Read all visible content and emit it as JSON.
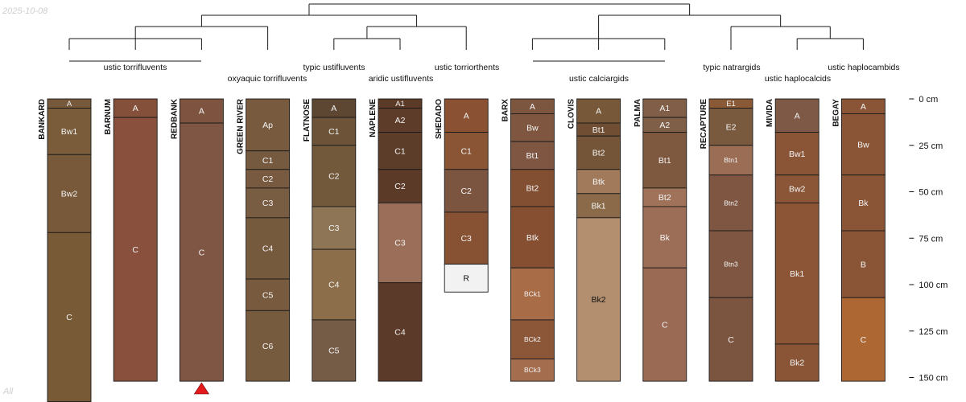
{
  "page": {
    "date": "2025-10-08",
    "footer": "All"
  },
  "depth_axis": {
    "unit": "cm",
    "max_depth": 152,
    "ticks": [
      {
        "depth": 0,
        "label": "0 cm"
      },
      {
        "depth": 25,
        "label": "25 cm"
      },
      {
        "depth": 50,
        "label": "50 cm"
      },
      {
        "depth": 75,
        "label": "75 cm"
      },
      {
        "depth": 100,
        "label": "100 cm"
      },
      {
        "depth": 125,
        "label": "125 cm"
      },
      {
        "depth": 150,
        "label": "150 cm"
      }
    ]
  },
  "taxa": [
    {
      "label": "ustic torrifluvents"
    },
    {
      "label": "oxyaquic torrifluvents"
    },
    {
      "label": "typic ustifluvents"
    },
    {
      "label": "aridic ustifluvents"
    },
    {
      "label": "ustic torriorthents"
    },
    {
      "label": "ustic calciargids"
    },
    {
      "label": "typic natrargids"
    },
    {
      "label": "ustic haplocalcids"
    },
    {
      "label": "ustic haplocambids"
    }
  ],
  "profiles": [
    {
      "name": "BANKARD",
      "horizons": [
        {
          "name": "A",
          "top": 0,
          "bottom": 5,
          "color": "#76593A"
        },
        {
          "name": "Bw1",
          "top": 5,
          "bottom": 30,
          "color": "#7A5C3B"
        },
        {
          "name": "Bw2",
          "top": 30,
          "bottom": 72,
          "color": "#78593A"
        },
        {
          "name": "C",
          "top": 72,
          "bottom": 163,
          "color": "#785A37"
        }
      ]
    },
    {
      "name": "BARNUM",
      "horizons": [
        {
          "name": "A",
          "top": 0,
          "bottom": 10,
          "color": "#85503A"
        },
        {
          "name": "C",
          "top": 10,
          "bottom": 152,
          "color": "#88503D"
        }
      ]
    },
    {
      "name": "REDBANK",
      "horizons": [
        {
          "name": "A",
          "top": 0,
          "bottom": 13,
          "color": "#7E5440"
        },
        {
          "name": "C",
          "top": 13,
          "bottom": 152,
          "color": "#7F5543"
        }
      ]
    },
    {
      "name": "GREEN RIVER",
      "horizons": [
        {
          "name": "Ap",
          "top": 0,
          "bottom": 28,
          "color": "#785A3F"
        },
        {
          "name": "C1",
          "top": 28,
          "bottom": 38,
          "color": "#765A40"
        },
        {
          "name": "C2",
          "top": 38,
          "bottom": 48,
          "color": "#785A40"
        },
        {
          "name": "C3",
          "top": 48,
          "bottom": 64,
          "color": "#795D42"
        },
        {
          "name": "C4",
          "top": 64,
          "bottom": 97,
          "color": "#765A3E"
        },
        {
          "name": "C5",
          "top": 97,
          "bottom": 114,
          "color": "#785B3E"
        },
        {
          "name": "C6",
          "top": 114,
          "bottom": 152,
          "color": "#775B3F"
        }
      ]
    },
    {
      "name": "FLATNOSE",
      "horizons": [
        {
          "name": "A",
          "top": 0,
          "bottom": 10,
          "color": "#5E4732"
        },
        {
          "name": "C1",
          "top": 10,
          "bottom": 25,
          "color": "#6D5439"
        },
        {
          "name": "C2",
          "top": 25,
          "bottom": 58,
          "color": "#73593C"
        },
        {
          "name": "C3",
          "top": 58,
          "bottom": 81,
          "color": "#8E7555"
        },
        {
          "name": "C4",
          "top": 81,
          "bottom": 119,
          "color": "#8D6E4B"
        },
        {
          "name": "C5",
          "top": 119,
          "bottom": 152,
          "color": "#745C47"
        }
      ]
    },
    {
      "name": "NAPLENE",
      "horizons": [
        {
          "name": "A1",
          "top": 0,
          "bottom": 5,
          "color": "#5C3A28"
        },
        {
          "name": "A2",
          "top": 5,
          "bottom": 18,
          "color": "#5E3C2A"
        },
        {
          "name": "C1",
          "top": 18,
          "bottom": 38,
          "color": "#5C3D2A"
        },
        {
          "name": "C2",
          "top": 38,
          "bottom": 56,
          "color": "#5B3A28"
        },
        {
          "name": "C3",
          "top": 56,
          "bottom": 99,
          "color": "#9A6E58"
        },
        {
          "name": "C4",
          "top": 99,
          "bottom": 152,
          "color": "#5C3A29"
        }
      ]
    },
    {
      "name": "SHEDADO",
      "horizons": [
        {
          "name": "A",
          "top": 0,
          "bottom": 18,
          "color": "#8A5233"
        },
        {
          "name": "C1",
          "top": 18,
          "bottom": 38,
          "color": "#895535"
        },
        {
          "name": "C2",
          "top": 38,
          "bottom": 61,
          "color": "#7B5540"
        },
        {
          "name": "C3",
          "top": 61,
          "bottom": 89,
          "color": "#875133"
        },
        {
          "name": "R",
          "top": 89,
          "bottom": 104,
          "color": "#F2F2F2"
        }
      ]
    },
    {
      "name": "BARX",
      "horizons": [
        {
          "name": "A",
          "top": 0,
          "bottom": 8,
          "color": "#7D5640"
        },
        {
          "name": "Bw",
          "top": 8,
          "bottom": 23,
          "color": "#7F5741"
        },
        {
          "name": "Bt1",
          "top": 23,
          "bottom": 38,
          "color": "#7E5641"
        },
        {
          "name": "Bt2",
          "top": 38,
          "bottom": 58,
          "color": "#824F32"
        },
        {
          "name": "Btk",
          "top": 58,
          "bottom": 91,
          "color": "#864F31"
        },
        {
          "name": "BCk1",
          "top": 91,
          "bottom": 119,
          "color": "#A86D47"
        },
        {
          "name": "BCk2",
          "top": 119,
          "bottom": 140,
          "color": "#8C5639"
        },
        {
          "name": "BCk3",
          "top": 140,
          "bottom": 152,
          "color": "#A46D4E"
        }
      ]
    },
    {
      "name": "CLOVIS",
      "horizons": [
        {
          "name": "A",
          "top": 0,
          "bottom": 13,
          "color": "#77593A"
        },
        {
          "name": "Bt1",
          "top": 13,
          "bottom": 20,
          "color": "#6F4E33"
        },
        {
          "name": "Bt2",
          "top": 20,
          "bottom": 38,
          "color": "#755537"
        },
        {
          "name": "Btk",
          "top": 38,
          "bottom": 51,
          "color": "#A07A5A"
        },
        {
          "name": "Bk1",
          "top": 51,
          "bottom": 64,
          "color": "#8B6A49"
        },
        {
          "name": "Bk2",
          "top": 64,
          "bottom": 152,
          "color": "#B38F6F"
        }
      ]
    },
    {
      "name": "PALMA",
      "horizons": [
        {
          "name": "A1",
          "top": 0,
          "bottom": 10,
          "color": "#805E48"
        },
        {
          "name": "A2",
          "top": 10,
          "bottom": 18,
          "color": "#805F48"
        },
        {
          "name": "Bt1",
          "top": 18,
          "bottom": 48,
          "color": "#7E583F"
        },
        {
          "name": "Bt2",
          "top": 48,
          "bottom": 58,
          "color": "#9F7259"
        },
        {
          "name": "Bk",
          "top": 58,
          "bottom": 91,
          "color": "#9C6E58"
        },
        {
          "name": "C",
          "top": 91,
          "bottom": 152,
          "color": "#9A6A55"
        }
      ]
    },
    {
      "name": "RECAPTURE",
      "horizons": [
        {
          "name": "E1",
          "top": 0,
          "bottom": 5,
          "color": "#8A5A36"
        },
        {
          "name": "E2",
          "top": 5,
          "bottom": 25,
          "color": "#7A5A3F"
        },
        {
          "name": "Btn1",
          "top": 25,
          "bottom": 41,
          "color": "#9B6D55"
        },
        {
          "name": "Btn2",
          "top": 41,
          "bottom": 71,
          "color": "#7F5642"
        },
        {
          "name": "Btn3",
          "top": 71,
          "bottom": 107,
          "color": "#7E5641"
        },
        {
          "name": "C",
          "top": 107,
          "bottom": 152,
          "color": "#7C5540"
        }
      ]
    },
    {
      "name": "MIVIDA",
      "horizons": [
        {
          "name": "A",
          "top": 0,
          "bottom": 18,
          "color": "#7E5945"
        },
        {
          "name": "Bw1",
          "top": 18,
          "bottom": 41,
          "color": "#8A5536"
        },
        {
          "name": "Bw2",
          "top": 41,
          "bottom": 56,
          "color": "#8B5637"
        },
        {
          "name": "Bk1",
          "top": 56,
          "bottom": 132,
          "color": "#8C5636"
        },
        {
          "name": "Bk2",
          "top": 132,
          "bottom": 152,
          "color": "#895536"
        }
      ]
    },
    {
      "name": "BEGAY",
      "horizons": [
        {
          "name": "A",
          "top": 0,
          "bottom": 8,
          "color": "#8A5536"
        },
        {
          "name": "Bw",
          "top": 8,
          "bottom": 41,
          "color": "#8A5536"
        },
        {
          "name": "Bk",
          "top": 41,
          "bottom": 71,
          "color": "#8A5536"
        },
        {
          "name": "B",
          "top": 71,
          "bottom": 107,
          "color": "#8A5536"
        },
        {
          "name": "C",
          "top": 107,
          "bottom": 152,
          "color": "#AD6732"
        }
      ]
    }
  ],
  "truncation_marker": {
    "profile": "REDBANK",
    "color": "#E41A1C"
  },
  "dendrogram": {
    "color": "#1a1a1a",
    "root": {
      "children": [
        {
          "children": [
            {
              "children": [
                {
                  "children": [
                    {
                      "leaf": "BANKARD"
                    },
                    {
                      "leaf": "BARNUM"
                    },
                    {
                      "leaf": "REDBANK"
                    }
                  ]
                },
                {
                  "leaf": "GREEN RIVER"
                }
              ]
            },
            {
              "children": [
                {
                  "children": [
                    {
                      "leaf": "FLATNOSE"
                    },
                    {
                      "leaf": "NAPLENE"
                    }
                  ]
                },
                {
                  "leaf": "SHEDADO"
                }
              ]
            }
          ]
        },
        {
          "children": [
            {
              "children": [
                {
                  "leaf": "BARX"
                },
                {
                  "leaf": "CLOVIS"
                },
                {
                  "leaf": "PALMA"
                }
              ]
            },
            {
              "children": [
                {
                  "leaf": "RECAPTURE"
                },
                {
                  "children": [
                    {
                      "leaf": "MIVIDA"
                    },
                    {
                      "leaf": "BEGAY"
                    }
                  ]
                }
              ]
            }
          ]
        }
      ]
    }
  }
}
